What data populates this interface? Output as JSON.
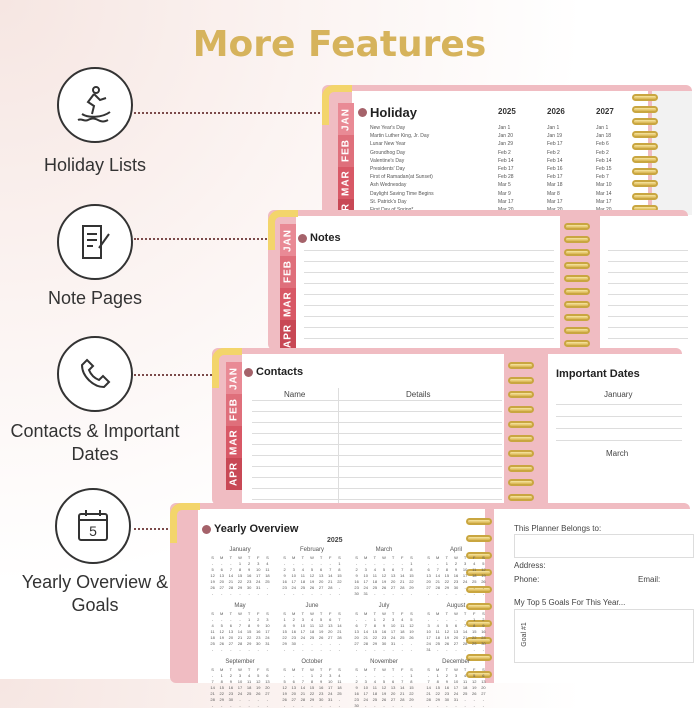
{
  "title": "More Features",
  "colors": {
    "gold": "#d6b35c",
    "pink": "#f0bcc2",
    "tab_jan": "#e98a95",
    "tab_feb": "#df6f7b",
    "tab_mar": "#d85866",
    "tab_apr": "#c84855",
    "dot": "#a5626a"
  },
  "features": [
    {
      "icon": "jet-ski-icon",
      "label": "Holiday Lists"
    },
    {
      "icon": "note-page-icon",
      "label": "Note Pages"
    },
    {
      "icon": "phone-icon",
      "label": "Contacts & Important Dates"
    },
    {
      "icon": "calendar-5-icon",
      "label": "Yearly Overview & Goals"
    }
  ],
  "tabs": [
    "JAN",
    "FEB",
    "MAR",
    "APR"
  ],
  "holiday": {
    "title": "Holiday",
    "years": [
      "2025",
      "2026",
      "2027"
    ],
    "rows": [
      [
        "New Year's Day",
        "Jan 1",
        "Jan 1",
        "Jan 1"
      ],
      [
        "Martin Luther King, Jr. Day",
        "Jan 20",
        "Jan 19",
        "Jan 18"
      ],
      [
        "Lunar New Year",
        "Jan 29",
        "Feb 17",
        "Feb 6"
      ],
      [
        "Groundhog Day",
        "Feb 2",
        "Feb 2",
        "Feb 2"
      ],
      [
        "Valentine's Day",
        "Feb 14",
        "Feb 14",
        "Feb 14"
      ],
      [
        "Presidents' Day",
        "Feb 17",
        "Feb 16",
        "Feb 15"
      ],
      [
        "First of Ramadan(at Sunset)",
        "Feb 28",
        "Feb 17",
        "Feb 7"
      ],
      [
        "Ash Wednesday",
        "Mar 5",
        "Mar 18",
        "Mar 10"
      ],
      [
        "Daylight Saving Time Begins",
        "Mar 9",
        "Mar 8",
        "Mar 14"
      ],
      [
        "St. Patrick's Day",
        "Mar 17",
        "Mar 17",
        "Mar 17"
      ],
      [
        "First Day of Spring*",
        "Mar 20",
        "Mar 20",
        "Mar 20"
      ]
    ]
  },
  "notes": {
    "title": "Notes"
  },
  "contacts": {
    "title": "Contacts",
    "col_name": "Name",
    "col_details": "Details"
  },
  "important": {
    "title": "Important Dates",
    "months": [
      "January",
      "March"
    ]
  },
  "yearly": {
    "title": "Yearly Overview",
    "year": "2025",
    "weekdays": [
      "S",
      "M",
      "T",
      "W",
      "T",
      "F",
      "S"
    ],
    "months": [
      "January",
      "February",
      "March",
      "April",
      "May",
      "June",
      "July",
      "August",
      "September",
      "October",
      "November",
      "December"
    ]
  },
  "goals": {
    "belongs": "This Planner Belongs to:",
    "address": "Address:",
    "phone": "Phone:",
    "email": "Email:",
    "top5": "My Top 5 Goals For This Year...",
    "goal1": "Goal #1"
  }
}
